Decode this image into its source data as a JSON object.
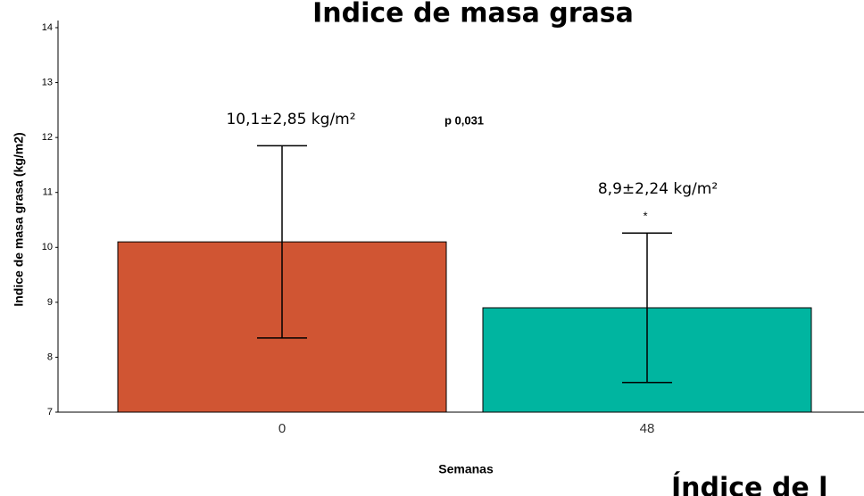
{
  "chart_data": {
    "type": "bar",
    "title": "Indice de masa grasa",
    "x_label": "Semanas",
    "y_label": "Indice de masa grasa (kg/m2)",
    "categories": [
      "0",
      "48"
    ],
    "values": [
      10.1,
      8.9
    ],
    "errors": [
      1.75,
      1.36
    ],
    "colors": [
      "#d05533",
      "#00b5a0"
    ],
    "ylim": [
      7,
      14
    ],
    "yticks": [
      7,
      8,
      9,
      10,
      11,
      12,
      13,
      14
    ],
    "annotations": [
      "10,1±2,85 kg/m²",
      "p 0,031",
      "8,9±2,24 kg/m²",
      "*",
      "Índice de l"
    ]
  }
}
